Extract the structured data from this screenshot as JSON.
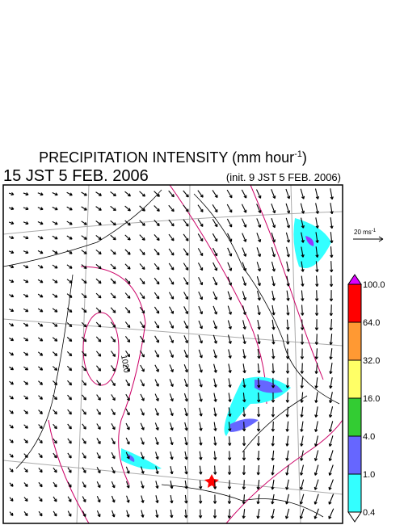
{
  "header": {
    "title": "PRECIPITATION INTENSITY (mm hour",
    "title_exponent": "-1",
    "title_close": ")",
    "valid_time": "15 JST 5 FEB. 2006",
    "init_time": "(init. 9 JST 5 FEB. 2006)"
  },
  "wind_legend": {
    "label": "20 ms",
    "exponent": "-1"
  },
  "map": {
    "contour_label": "1020"
  },
  "colorbar": {
    "labels": [
      "100.0",
      "64.0",
      "32.0",
      "16.0",
      "4.0",
      "1.0",
      "0.4"
    ],
    "colors": [
      "#dd00ff",
      "#ff0000",
      "#ff9933",
      "#ffff66",
      "#33cc33",
      "#6666ff",
      "#33ffff",
      "#ffffff"
    ]
  }
}
